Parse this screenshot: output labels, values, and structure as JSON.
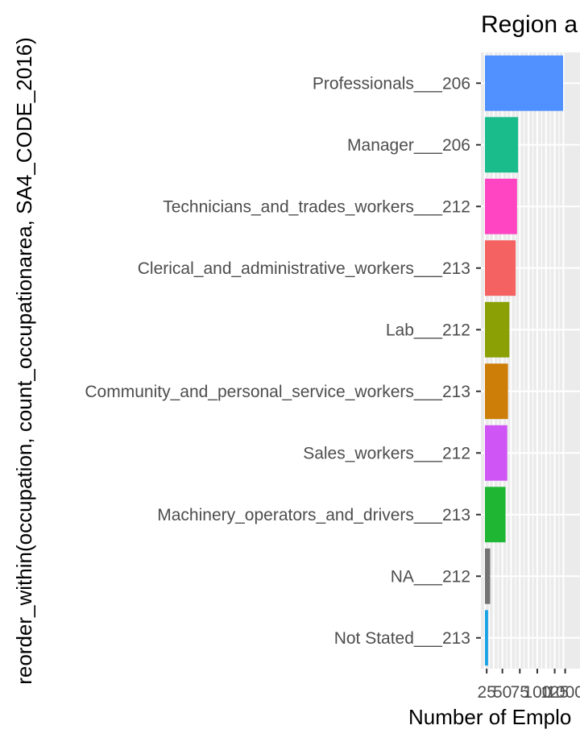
{
  "chart_data": {
    "type": "bar",
    "orientation": "horizontal",
    "title": "Region a",
    "xlabel": "Number of Emplo",
    "ylabel": "reorder_within(occupation, count_occupationarea, SA4_CODE_2016)",
    "categories": [
      "Professionals___206",
      "Manager___206",
      "Technicians_and_trades_workers___212",
      "Clerical_and_administrative_workers___213",
      "Lab___212",
      "Community_and_personal_service_workers___213",
      "Sales_workers___212",
      "Machinery_operators_and_drivers___213",
      "NA___212",
      "Not Stated___213"
    ],
    "values": [
      1120,
      475,
      460,
      440,
      350,
      330,
      320,
      295,
      75,
      45
    ],
    "colors": [
      "#5090FF",
      "#1ABC8C",
      "#FF45C2",
      "#F46262",
      "#8BA005",
      "#CC7E08",
      "#CF55F5",
      "#1EB633",
      "#737373",
      "#1AA3E5"
    ],
    "x_ticks": [
      "25",
      "50",
      "75",
      "100",
      "125",
      "1000"
    ],
    "xlim": [
      0,
      1160
    ],
    "grid": true,
    "legend": "none"
  }
}
